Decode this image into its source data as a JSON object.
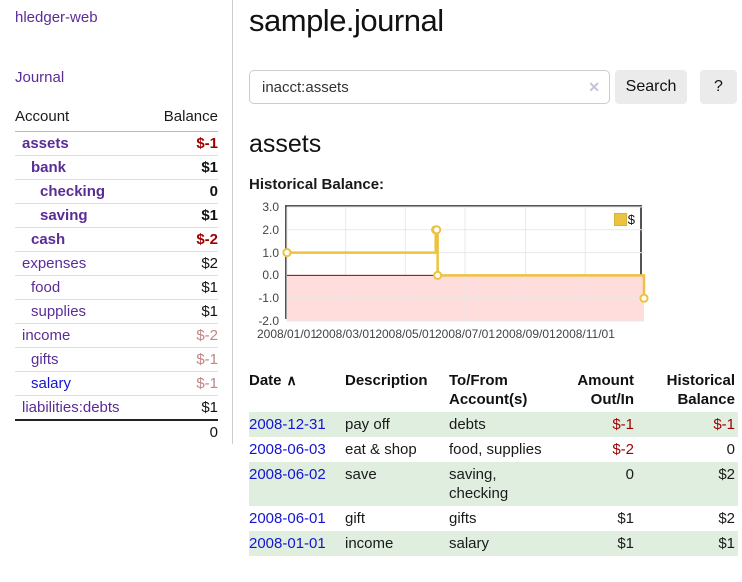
{
  "app": {
    "title": "hledger-web"
  },
  "colors": {
    "accent_purple": "#5a2d96",
    "link_blue": "#1414d2",
    "negative_strong": "#9e0000",
    "negative_soft": "#c48282",
    "row_stripe_green": "#dfeedf",
    "chart_line": "#edc240",
    "chart_negative_region": "#ffdddd",
    "chart_zero_line": "#a00000",
    "plot_border": "#545454",
    "grid_line": "#e8e8e8",
    "button_bg": "#ebebeb"
  },
  "sidebar": {
    "journal_link": "Journal",
    "accounts": {
      "header_account": "Account",
      "header_balance": "Balance",
      "rows": [
        {
          "name": "assets",
          "balance": "$-1",
          "depth": 0,
          "match": true,
          "neg": "strong",
          "link": "purple"
        },
        {
          "name": "bank",
          "balance": "$1",
          "depth": 1,
          "match": true,
          "neg": "none",
          "link": "purple"
        },
        {
          "name": "checking",
          "balance": "0",
          "depth": 2,
          "match": true,
          "neg": "none",
          "link": "purple"
        },
        {
          "name": "saving",
          "balance": "$1",
          "depth": 2,
          "match": true,
          "neg": "none",
          "link": "purple"
        },
        {
          "name": "cash",
          "balance": "$-2",
          "depth": 1,
          "match": true,
          "neg": "strong",
          "link": "purple"
        },
        {
          "name": "expenses",
          "balance": "$2",
          "depth": 0,
          "match": false,
          "neg": "none",
          "link": "purple"
        },
        {
          "name": "food",
          "balance": "$1",
          "depth": 1,
          "match": false,
          "neg": "none",
          "link": "purple"
        },
        {
          "name": "supplies",
          "balance": "$1",
          "depth": 1,
          "match": false,
          "neg": "none",
          "link": "purple"
        },
        {
          "name": "income",
          "balance": "$-2",
          "depth": 0,
          "match": false,
          "neg": "soft",
          "link": "purple"
        },
        {
          "name": "gifts",
          "balance": "$-1",
          "depth": 1,
          "match": false,
          "neg": "soft",
          "link": "purple"
        },
        {
          "name": "salary",
          "balance": "$-1",
          "depth": 1,
          "match": false,
          "neg": "soft",
          "link": "blue"
        },
        {
          "name": "liabilities:debts",
          "balance": "$1",
          "depth": 0,
          "match": false,
          "neg": "none",
          "link": "purple"
        }
      ],
      "total": "0"
    }
  },
  "main": {
    "title": "sample.journal",
    "search": {
      "value": "inacct:assets",
      "clear_icon": "✕",
      "button_label": "Search",
      "help_label": "?"
    },
    "account_heading": "assets",
    "chart_label": "Historical Balance:",
    "register": {
      "headers": {
        "date": "Date",
        "sort_icon": "∧",
        "description": "Description",
        "accounts": "To/From Account(s)",
        "amount": "Amount Out/In",
        "balance": "Historical Balance"
      },
      "rows": [
        {
          "date": "2008-12-31",
          "description": "pay off",
          "accounts": "debts",
          "amount": "$-1",
          "balance": "$-1",
          "amount_negative": true,
          "balance_negative": true,
          "shaded": true
        },
        {
          "date": "2008-06-03",
          "description": "eat & shop",
          "accounts": "food, supplies",
          "amount": "$-2",
          "balance": "0",
          "amount_negative": true,
          "balance_negative": false,
          "shaded": false
        },
        {
          "date": "2008-06-02",
          "description": "save",
          "accounts": "saving, checking",
          "amount": "0",
          "balance": "$2",
          "amount_negative": false,
          "balance_negative": false,
          "shaded": true
        },
        {
          "date": "2008-06-01",
          "description": "gift",
          "accounts": "gifts",
          "amount": "$1",
          "balance": "$2",
          "amount_negative": false,
          "balance_negative": false,
          "shaded": false
        },
        {
          "date": "2008-01-01",
          "description": "income",
          "accounts": "salary",
          "amount": "$1",
          "balance": "$1",
          "amount_negative": false,
          "balance_negative": false,
          "shaded": true
        }
      ]
    }
  },
  "chart_data": {
    "type": "line",
    "step": true,
    "title": "Historical Balance:",
    "xrange": [
      "2008-01-01",
      "2008-12-31"
    ],
    "ylim": [
      -2,
      3
    ],
    "ytick_labels": [
      "3.0",
      "2.0",
      "1.0",
      "0.0",
      "-1.0",
      "-2.0"
    ],
    "xtick_labels": [
      "2008/01/01",
      "2008/03/01",
      "2008/05/01",
      "2008/07/01",
      "2008/09/01",
      "2008/11/01"
    ],
    "series": [
      {
        "name": "$",
        "color": "#edc240",
        "points": [
          {
            "date": "2008-01-01",
            "value": 1
          },
          {
            "date": "2008-06-01",
            "value": 2
          },
          {
            "date": "2008-06-02",
            "value": 2
          },
          {
            "date": "2008-06-03",
            "value": 0
          },
          {
            "date": "2008-12-31",
            "value": -1
          }
        ]
      }
    ],
    "negative_region": {
      "below": 0,
      "color": "#ffdddd"
    },
    "zero_line_color": "#a00000",
    "legend": {
      "position": "top-right",
      "label": "$"
    }
  }
}
